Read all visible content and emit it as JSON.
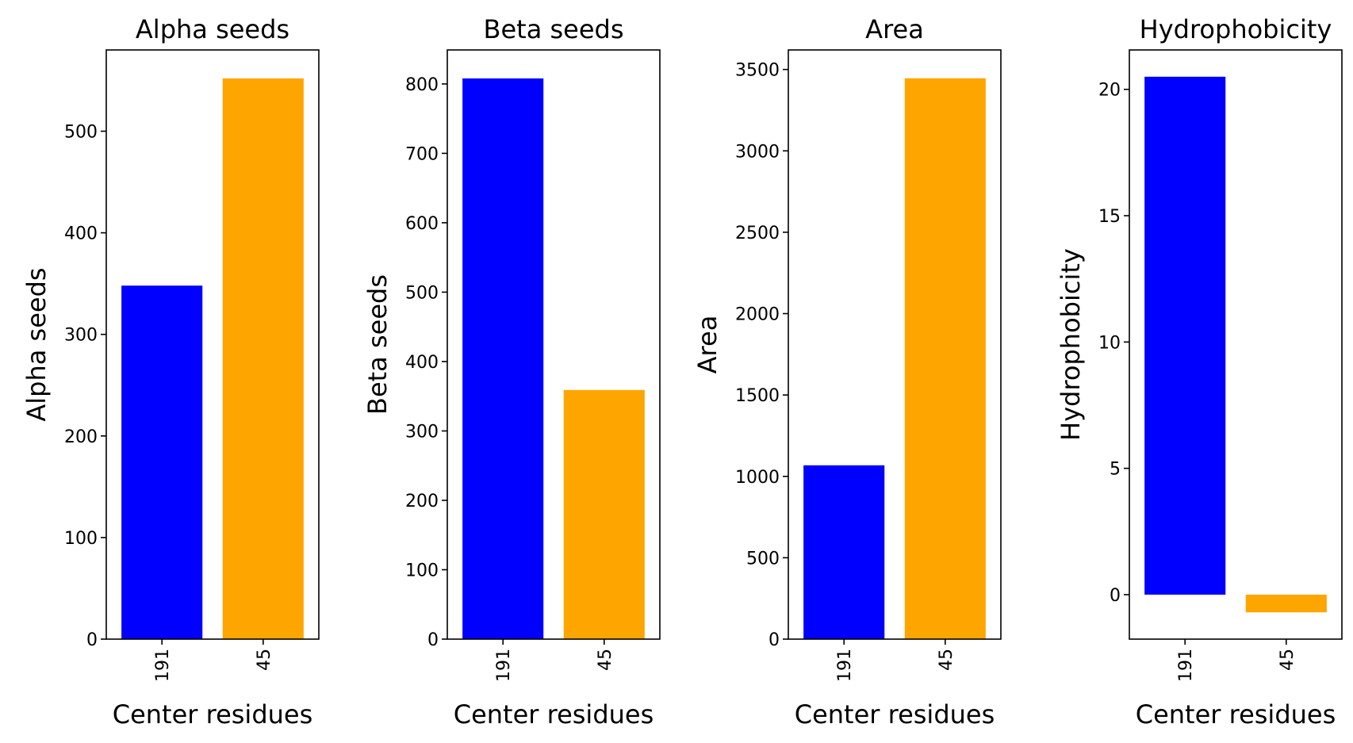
{
  "figure": {
    "chart_data": [
      {
        "type": "bar",
        "title": "Alpha seeds",
        "xlabel": "Center residues",
        "ylabel": "Alpha seeds",
        "categories": [
          "191",
          "45"
        ],
        "values": [
          348,
          552
        ],
        "colors": [
          "#0000ff",
          "#ffa500"
        ],
        "ylim": [
          0,
          580
        ],
        "yticks": [
          0,
          100,
          200,
          300,
          400,
          500
        ],
        "ytick_labels": [
          "0",
          "100",
          "200",
          "300",
          "400",
          "500"
        ],
        "grid": false
      },
      {
        "type": "bar",
        "title": "Beta seeds",
        "xlabel": "Center residues",
        "ylabel": "Beta seeds",
        "categories": [
          "191",
          "45"
        ],
        "values": [
          808,
          359
        ],
        "colors": [
          "#0000ff",
          "#ffa500"
        ],
        "ylim": [
          0,
          849
        ],
        "yticks": [
          0,
          100,
          200,
          300,
          400,
          500,
          600,
          700,
          800
        ],
        "ytick_labels": [
          "0",
          "100",
          "200",
          "300",
          "400",
          "500",
          "600",
          "700",
          "800"
        ],
        "grid": false
      },
      {
        "type": "bar",
        "title": "Area",
        "xlabel": "Center residues",
        "ylabel": "Area",
        "categories": [
          "191",
          "45"
        ],
        "values": [
          1068,
          3446
        ],
        "colors": [
          "#0000ff",
          "#ffa500"
        ],
        "ylim": [
          0,
          3620
        ],
        "yticks": [
          0,
          500,
          1000,
          1500,
          2000,
          2500,
          3000,
          3500
        ],
        "ytick_labels": [
          "0",
          "500",
          "1000",
          "1500",
          "2000",
          "2500",
          "3000",
          "3500"
        ],
        "grid": false
      },
      {
        "type": "bar",
        "title": "Hydrophobicity",
        "xlabel": "Center residues",
        "ylabel": "Hydrophobicity",
        "categories": [
          "191",
          "45"
        ],
        "values": [
          20.5,
          -0.7
        ],
        "colors": [
          "#0000ff",
          "#ffa500"
        ],
        "ylim": [
          -1.76,
          21.56
        ],
        "yticks": [
          0,
          5,
          10,
          15,
          20
        ],
        "ytick_labels": [
          "0",
          "5",
          "10",
          "15",
          "20"
        ],
        "grid": false
      }
    ]
  }
}
